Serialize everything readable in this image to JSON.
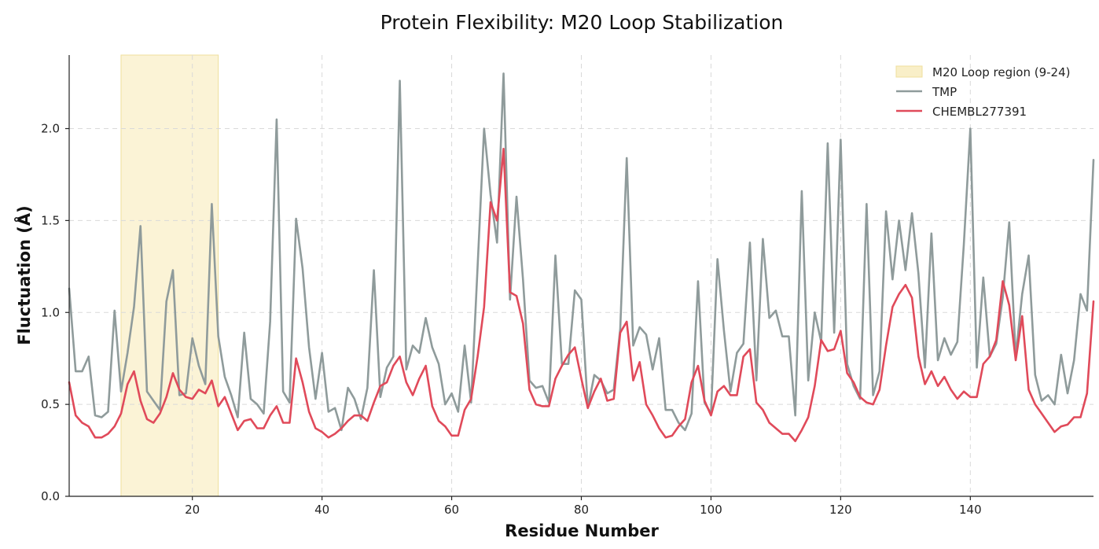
{
  "chart_data": {
    "type": "line",
    "title": "Protein Flexibility: M20 Loop Stabilization",
    "xlabel": "Residue Number",
    "ylabel": "Fluctuation (Å)",
    "xlim": [
      1,
      159
    ],
    "ylim": [
      0,
      2.4
    ],
    "xticks": [
      20,
      40,
      60,
      80,
      100,
      120,
      140
    ],
    "yticks": [
      0.0,
      0.5,
      1.0,
      1.5,
      2.0
    ],
    "ytick_labels": [
      "0.0",
      "0.5",
      "1.0",
      "1.5",
      "2.0"
    ],
    "grid": true,
    "legend_position": "top-right",
    "region": {
      "name": "M20 Loop region (9-24)",
      "start": 9,
      "end": 24,
      "color": "#f9efc8"
    },
    "series": [
      {
        "name": "TMP",
        "color": "#8f9b9b",
        "x_start": 1,
        "values": [
          1.13,
          0.68,
          0.68,
          0.76,
          0.44,
          0.43,
          0.46,
          1.01,
          0.57,
          0.78,
          1.03,
          1.47,
          0.57,
          0.52,
          0.47,
          1.06,
          1.23,
          0.55,
          0.56,
          0.86,
          0.71,
          0.61,
          1.59,
          0.87,
          0.65,
          0.55,
          0.43,
          0.89,
          0.53,
          0.5,
          0.45,
          0.95,
          2.05,
          0.57,
          0.51,
          1.51,
          1.24,
          0.81,
          0.53,
          0.78,
          0.46,
          0.48,
          0.36,
          0.59,
          0.53,
          0.42,
          0.59,
          1.23,
          0.54,
          0.7,
          0.76,
          2.26,
          0.69,
          0.82,
          0.78,
          0.97,
          0.81,
          0.72,
          0.5,
          0.56,
          0.46,
          0.82,
          0.51,
          1.25,
          2.0,
          1.64,
          1.38,
          2.3,
          1.07,
          1.63,
          1.18,
          0.63,
          0.59,
          0.6,
          0.51,
          1.31,
          0.72,
          0.72,
          1.12,
          1.07,
          0.48,
          0.66,
          0.63,
          0.56,
          0.58,
          0.91,
          1.84,
          0.82,
          0.92,
          0.88,
          0.69,
          0.86,
          0.47,
          0.47,
          0.4,
          0.36,
          0.45,
          1.17,
          0.51,
          0.45,
          1.29,
          0.9,
          0.57,
          0.78,
          0.83,
          1.38,
          0.63,
          1.4,
          0.97,
          1.01,
          0.87,
          0.87,
          0.44,
          1.66,
          0.63,
          1.0,
          0.84,
          1.92,
          0.89,
          1.94,
          0.72,
          0.6,
          0.53,
          1.59,
          0.55,
          0.68,
          1.55,
          1.18,
          1.5,
          1.23,
          1.54,
          1.21,
          0.7,
          1.43,
          0.74,
          0.86,
          0.77,
          0.84,
          1.37,
          2.0,
          0.7,
          1.19,
          0.76,
          0.83,
          1.08,
          1.49,
          0.76,
          1.1,
          1.31,
          0.66,
          0.52,
          0.55,
          0.5,
          0.77,
          0.56,
          0.74,
          1.1,
          1.01,
          1.83
        ]
      },
      {
        "name": "CHEMBL277391",
        "color": "#e04a5a",
        "x_start": 1,
        "values": [
          0.62,
          0.44,
          0.4,
          0.38,
          0.32,
          0.32,
          0.34,
          0.38,
          0.45,
          0.61,
          0.68,
          0.52,
          0.42,
          0.4,
          0.45,
          0.54,
          0.67,
          0.58,
          0.54,
          0.53,
          0.58,
          0.56,
          0.63,
          0.49,
          0.54,
          0.45,
          0.36,
          0.41,
          0.42,
          0.37,
          0.37,
          0.44,
          0.49,
          0.4,
          0.4,
          0.75,
          0.62,
          0.46,
          0.37,
          0.35,
          0.32,
          0.34,
          0.37,
          0.41,
          0.44,
          0.44,
          0.41,
          0.51,
          0.6,
          0.62,
          0.71,
          0.76,
          0.62,
          0.55,
          0.64,
          0.71,
          0.49,
          0.41,
          0.38,
          0.33,
          0.33,
          0.47,
          0.53,
          0.76,
          1.03,
          1.6,
          1.5,
          1.89,
          1.11,
          1.09,
          0.94,
          0.58,
          0.5,
          0.49,
          0.49,
          0.64,
          0.71,
          0.77,
          0.81,
          0.64,
          0.48,
          0.57,
          0.64,
          0.52,
          0.53,
          0.89,
          0.95,
          0.63,
          0.73,
          0.5,
          0.44,
          0.37,
          0.32,
          0.33,
          0.38,
          0.42,
          0.62,
          0.71,
          0.52,
          0.44,
          0.57,
          0.6,
          0.55,
          0.55,
          0.76,
          0.8,
          0.51,
          0.47,
          0.4,
          0.37,
          0.34,
          0.34,
          0.3,
          0.36,
          0.43,
          0.6,
          0.85,
          0.79,
          0.8,
          0.9,
          0.67,
          0.62,
          0.54,
          0.51,
          0.5,
          0.58,
          0.82,
          1.03,
          1.1,
          1.15,
          1.08,
          0.76,
          0.61,
          0.68,
          0.6,
          0.65,
          0.58,
          0.53,
          0.57,
          0.54,
          0.54,
          0.72,
          0.76,
          0.85,
          1.17,
          1.04,
          0.74,
          0.98,
          0.58,
          0.5,
          0.45,
          0.4,
          0.35,
          0.38,
          0.39,
          0.43,
          0.43,
          0.56,
          1.06
        ]
      }
    ]
  }
}
